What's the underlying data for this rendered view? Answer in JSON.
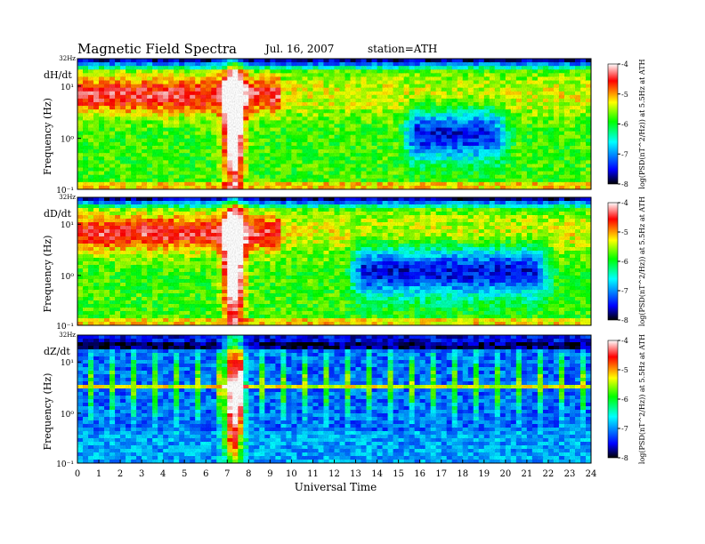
{
  "header": {
    "title": "Magnetic Field Spectra",
    "date": "Jul. 16, 2007",
    "station": "station=ATH"
  },
  "colors": {
    "colormap": [
      "#000000",
      "#0000ff",
      "#00ffff",
      "#00ff00",
      "#ffff00",
      "#ff0000",
      "#ffffff"
    ]
  },
  "chart_data": [
    {
      "type": "heatmap",
      "panel_label": "dH/dt",
      "xlabel": "",
      "ylabel": "Frequency (Hz)",
      "yscale": "log",
      "y_ticks": [
        "10¹",
        "10⁰",
        "10⁻¹"
      ],
      "y_top_label": "32Hz",
      "colorbar": {
        "label": "log(PSD(nT^2/Hz)) at 5.5Hz at ATH",
        "ticks": [
          -4,
          -5,
          -6,
          -7,
          -8
        ],
        "range": [
          -8,
          -4
        ]
      }
    },
    {
      "type": "heatmap",
      "panel_label": "dD/dt",
      "xlabel": "",
      "ylabel": "Frequency (Hz)",
      "yscale": "log",
      "y_ticks": [
        "10¹",
        "10⁰",
        "10⁻¹"
      ],
      "y_top_label": "32Hz",
      "colorbar": {
        "label": "log(PSD(nT^2/Hz)) at 5.5Hz at ATH",
        "ticks": [
          -4,
          -5,
          -6,
          -7,
          -8
        ],
        "range": [
          -8,
          -4
        ]
      }
    },
    {
      "type": "heatmap",
      "panel_label": "dZ/dt",
      "xlabel": "Universal Time",
      "ylabel": "Frequency (Hz)",
      "yscale": "log",
      "y_ticks": [
        "10¹",
        "10⁰",
        "10⁻¹"
      ],
      "y_top_label": "32Hz",
      "x_ticks": [
        0,
        1,
        2,
        3,
        4,
        5,
        6,
        7,
        8,
        9,
        10,
        11,
        12,
        13,
        14,
        15,
        16,
        17,
        18,
        19,
        20,
        21,
        22,
        23,
        24
      ],
      "xlim": [
        0,
        24
      ],
      "colorbar": {
        "label": "log(PSD(nT^2/Hz)) at 5.5Hz at ATH",
        "ticks": [
          -4,
          -5,
          -6,
          -7,
          -8
        ],
        "range": [
          -8,
          -4
        ]
      }
    }
  ]
}
